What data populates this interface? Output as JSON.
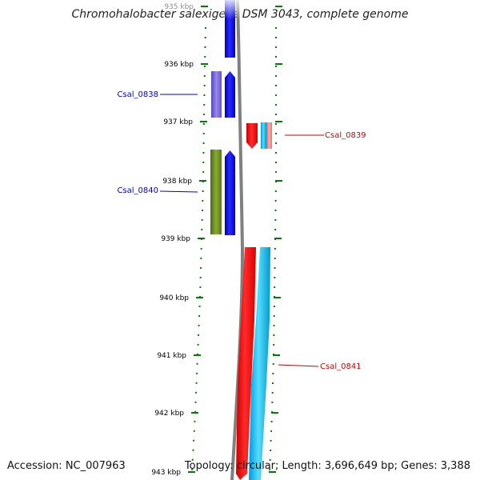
{
  "title": "Chromohalobacter salexigens DSM 3043, complete genome",
  "ticks": [
    {
      "label": "935 kbp"
    },
    {
      "label": "936 kbp"
    },
    {
      "label": "937 kbp"
    },
    {
      "label": "938 kbp"
    },
    {
      "label": "939 kbp"
    },
    {
      "label": "940 kbp"
    },
    {
      "label": "941 kbp"
    },
    {
      "label": "942 kbp"
    },
    {
      "label": "943 kbp"
    }
  ],
  "genes": [
    {
      "name": "Csal_0838",
      "strand": "+",
      "color": "#0000cc"
    },
    {
      "name": "Csal_0839",
      "strand": "-",
      "color": "#cc0000"
    },
    {
      "name": "Csal_0840",
      "strand": "+",
      "color": "#0000cc"
    },
    {
      "name": "Csal_0841",
      "strand": "-",
      "color": "#cc0000"
    }
  ],
  "colors": {
    "forward_cds": "#0000ff",
    "reverse_cds": "#ff0000",
    "cyan_track": "#22bbee",
    "purple_track": "#7766cc",
    "olive_track": "#668822",
    "pink_track": "#ee8888",
    "backbone": "#808080",
    "tick_marks": "#008000"
  },
  "footer": {
    "accession": "Accession: NC_007963",
    "topology": "Topology: circular; Length: 3,696,649 bp; Genes: 3,388"
  }
}
